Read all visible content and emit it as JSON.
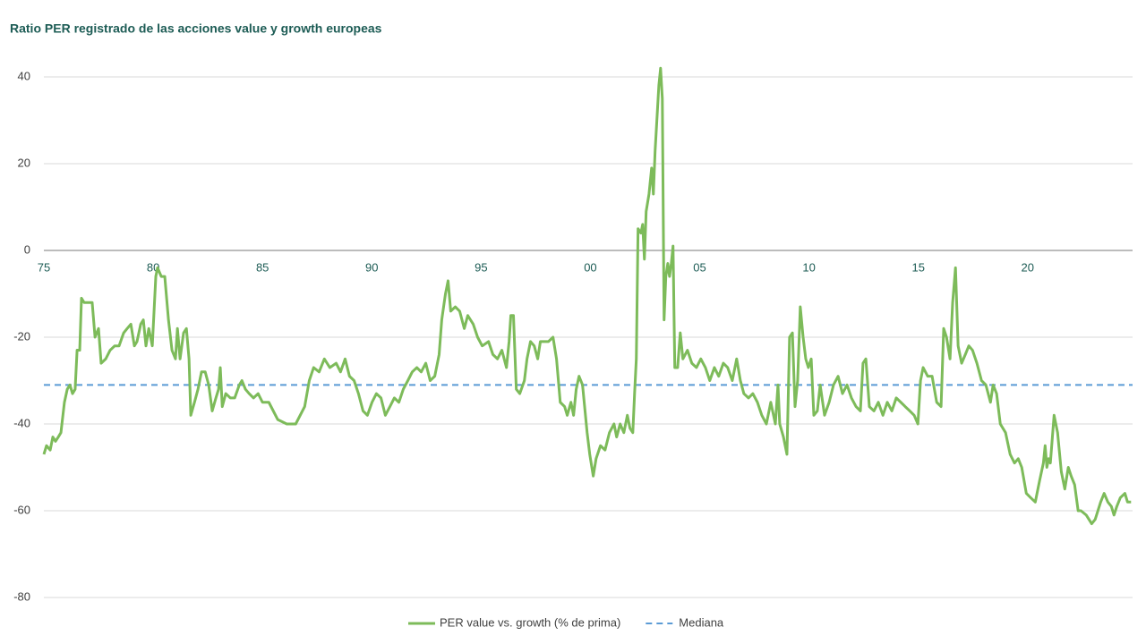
{
  "chart_data": {
    "type": "line",
    "title": "Ratio PER registrado de las acciones value y growth europeas",
    "x": [
      1975.0,
      1975.12,
      1975.29,
      1975.41,
      1975.53,
      1975.66,
      1975.78,
      1975.94,
      1976.07,
      1976.19,
      1976.31,
      1976.43,
      1976.52,
      1976.64,
      1976.72,
      1976.84,
      1977.01,
      1977.21,
      1977.34,
      1977.5,
      1977.62,
      1977.83,
      1978.03,
      1978.24,
      1978.44,
      1978.65,
      1978.81,
      1978.98,
      1979.14,
      1979.26,
      1979.43,
      1979.55,
      1979.67,
      1979.8,
      1979.96,
      1980.12,
      1980.2,
      1980.37,
      1980.53,
      1980.7,
      1980.86,
      1981.02,
      1981.11,
      1981.23,
      1981.39,
      1981.52,
      1981.64,
      1981.72,
      1981.89,
      1982.05,
      1982.21,
      1982.38,
      1982.54,
      1982.7,
      1982.87,
      1982.99,
      1983.07,
      1983.16,
      1983.32,
      1983.53,
      1983.73,
      1983.94,
      1984.06,
      1984.22,
      1984.39,
      1984.59,
      1984.8,
      1985.0,
      1985.29,
      1985.7,
      1986.11,
      1986.52,
      1986.93,
      1987.14,
      1987.34,
      1987.59,
      1987.83,
      1988.08,
      1988.37,
      1988.57,
      1988.78,
      1988.98,
      1989.19,
      1989.39,
      1989.6,
      1989.8,
      1990.01,
      1990.21,
      1990.42,
      1990.62,
      1990.83,
      1991.03,
      1991.24,
      1991.44,
      1991.65,
      1991.85,
      1992.06,
      1992.26,
      1992.47,
      1992.67,
      1992.88,
      1993.08,
      1993.2,
      1993.37,
      1993.49,
      1993.61,
      1993.82,
      1994.02,
      1994.23,
      1994.39,
      1994.64,
      1994.84,
      1995.05,
      1995.34,
      1995.54,
      1995.75,
      1995.95,
      1996.16,
      1996.28,
      1996.36,
      1996.48,
      1996.61,
      1996.77,
      1996.98,
      1997.1,
      1997.26,
      1997.43,
      1997.59,
      1997.71,
      1997.92,
      1998.08,
      1998.29,
      1998.45,
      1998.62,
      1998.82,
      1998.94,
      1999.11,
      1999.23,
      1999.35,
      1999.48,
      1999.64,
      1999.85,
      1999.97,
      2000.13,
      2000.26,
      2000.46,
      2000.67,
      2000.87,
      2001.08,
      2001.2,
      2001.36,
      2001.53,
      2001.69,
      2001.81,
      2001.94,
      2002.02,
      2002.1,
      2002.18,
      2002.31,
      2002.39,
      2002.47,
      2002.55,
      2002.68,
      2002.8,
      2002.88,
      2002.96,
      2003.04,
      2003.13,
      2003.21,
      2003.29,
      2003.37,
      2003.45,
      2003.54,
      2003.62,
      2003.7,
      2003.78,
      2003.86,
      2003.99,
      2004.11,
      2004.23,
      2004.44,
      2004.64,
      2004.85,
      2005.05,
      2005.26,
      2005.46,
      2005.67,
      2005.87,
      2006.08,
      2006.28,
      2006.49,
      2006.69,
      2006.86,
      2007.02,
      2007.23,
      2007.43,
      2007.64,
      2007.84,
      2008.05,
      2008.25,
      2008.46,
      2008.58,
      2008.66,
      2008.83,
      2008.99,
      2009.11,
      2009.24,
      2009.36,
      2009.48,
      2009.6,
      2009.73,
      2009.85,
      2009.97,
      2010.1,
      2010.22,
      2010.38,
      2010.51,
      2010.71,
      2010.92,
      2011.12,
      2011.33,
      2011.53,
      2011.74,
      2011.94,
      2012.15,
      2012.35,
      2012.47,
      2012.6,
      2012.76,
      2012.97,
      2013.17,
      2013.38,
      2013.58,
      2013.79,
      2013.99,
      2014.2,
      2014.4,
      2014.61,
      2014.81,
      2014.98,
      2015.1,
      2015.22,
      2015.43,
      2015.63,
      2015.84,
      2016.04,
      2016.16,
      2016.29,
      2016.45,
      2016.57,
      2016.7,
      2016.82,
      2016.98,
      2017.15,
      2017.31,
      2017.48,
      2017.68,
      2017.89,
      2018.09,
      2018.3,
      2018.42,
      2018.58,
      2018.75,
      2018.99,
      2019.2,
      2019.4,
      2019.57,
      2019.73,
      2019.94,
      2020.14,
      2020.35,
      2020.55,
      2020.72,
      2020.8,
      2020.88,
      2020.96,
      2021.04,
      2021.21,
      2021.37,
      2021.54,
      2021.7,
      2021.86,
      2021.99,
      2022.15,
      2022.31,
      2022.44,
      2022.68,
      2022.93,
      2023.09,
      2023.34,
      2023.5,
      2023.67,
      2023.83,
      2023.95,
      2024.08,
      2024.24,
      2024.45,
      2024.57,
      2024.73
    ],
    "series": [
      {
        "name": "PER value vs. growth (% de prima)",
        "color": "#7dbb5a",
        "values": [
          -47,
          -45,
          -46,
          -43,
          -44,
          -43,
          -42,
          -35,
          -32,
          -31,
          -33,
          -32,
          -23,
          -23,
          -11,
          -12,
          -12,
          -12,
          -20,
          -18,
          -26,
          -25,
          -23,
          -22,
          -22,
          -19,
          -18,
          -17,
          -22,
          -21,
          -17,
          -16,
          -22,
          -18,
          -22,
          -6,
          -4,
          -6,
          -6,
          -16,
          -23,
          -25,
          -18,
          -25,
          -19,
          -18,
          -25,
          -38,
          -35,
          -32,
          -28,
          -28,
          -31,
          -37,
          -34,
          -32,
          -27,
          -36,
          -33,
          -34,
          -34,
          -31,
          -30,
          -32,
          -33,
          -34,
          -33,
          -35,
          -35,
          -39,
          -40,
          -40,
          -36,
          -30,
          -27,
          -28,
          -25,
          -27,
          -26,
          -28,
          -25,
          -29,
          -30,
          -33,
          -37,
          -38,
          -35,
          -33,
          -34,
          -38,
          -36,
          -34,
          -35,
          -32,
          -30,
          -28,
          -27,
          -28,
          -26,
          -30,
          -29,
          -24,
          -16,
          -10,
          -7,
          -14,
          -13,
          -14,
          -18,
          -15,
          -17,
          -20,
          -22,
          -21,
          -24,
          -25,
          -23,
          -27,
          -21,
          -15,
          -15,
          -32,
          -33,
          -30,
          -25,
          -21,
          -22,
          -25,
          -21,
          -21,
          -21,
          -20,
          -25,
          -35,
          -36,
          -38,
          -35,
          -38,
          -32,
          -29,
          -31,
          -42,
          -47,
          -52,
          -48,
          -45,
          -46,
          -42,
          -40,
          -43,
          -40,
          -42,
          -38,
          -41,
          -42,
          -33,
          -25,
          5,
          4,
          6,
          -2,
          9,
          13,
          19,
          13,
          23,
          30,
          38,
          42,
          35,
          -16,
          -6,
          -3,
          -6,
          -3,
          1,
          -27,
          -27,
          -19,
          -25,
          -23,
          -26,
          -27,
          -25,
          -27,
          -30,
          -27,
          -29,
          -26,
          -27,
          -30,
          -25,
          -30,
          -33,
          -34,
          -33,
          -35,
          -38,
          -40,
          -35,
          -40,
          -31,
          -40,
          -43,
          -47,
          -20,
          -19,
          -36,
          -30,
          -13,
          -20,
          -25,
          -27,
          -25,
          -38,
          -37,
          -31,
          -38,
          -35,
          -31,
          -29,
          -33,
          -31,
          -34,
          -36,
          -37,
          -26,
          -25,
          -36,
          -37,
          -35,
          -38,
          -35,
          -37,
          -34,
          -35,
          -36,
          -37,
          -38,
          -40,
          -30,
          -27,
          -29,
          -29,
          -35,
          -36,
          -18,
          -20,
          -25,
          -12,
          -4,
          -22,
          -26,
          -24,
          -22,
          -23,
          -26,
          -30,
          -31,
          -35,
          -31,
          -33,
          -40,
          -42,
          -47,
          -49,
          -48,
          -50,
          -56,
          -57,
          -58,
          -53,
          -49,
          -45,
          -50,
          -48,
          -49,
          -38,
          -42,
          -51,
          -55,
          -50,
          -52,
          -54,
          -60,
          -60,
          -61,
          -63,
          -62,
          -58,
          -56,
          -58,
          -59,
          -61,
          -59,
          -57,
          -56,
          -58,
          -58
        ]
      }
    ],
    "reference_lines": [
      {
        "name": "Mediana",
        "value": -31,
        "color": "#5b9bd5",
        "style": "dashed"
      }
    ],
    "xlim": [
      1975,
      2024.8
    ],
    "xticks": [
      {
        "value": 1975,
        "label": "75"
      },
      {
        "value": 1980,
        "label": "80"
      },
      {
        "value": 1985,
        "label": "85"
      },
      {
        "value": 1990,
        "label": "90"
      },
      {
        "value": 1995,
        "label": "95"
      },
      {
        "value": 2000,
        "label": "00"
      },
      {
        "value": 2005,
        "label": "05"
      },
      {
        "value": 2010,
        "label": "10"
      },
      {
        "value": 2015,
        "label": "15"
      },
      {
        "value": 2020,
        "label": "20"
      }
    ],
    "ylim": [
      -80,
      40
    ],
    "yticks": [
      -80,
      -60,
      -40,
      -20,
      0,
      20,
      40
    ],
    "grid": true,
    "legend": "bottom"
  }
}
